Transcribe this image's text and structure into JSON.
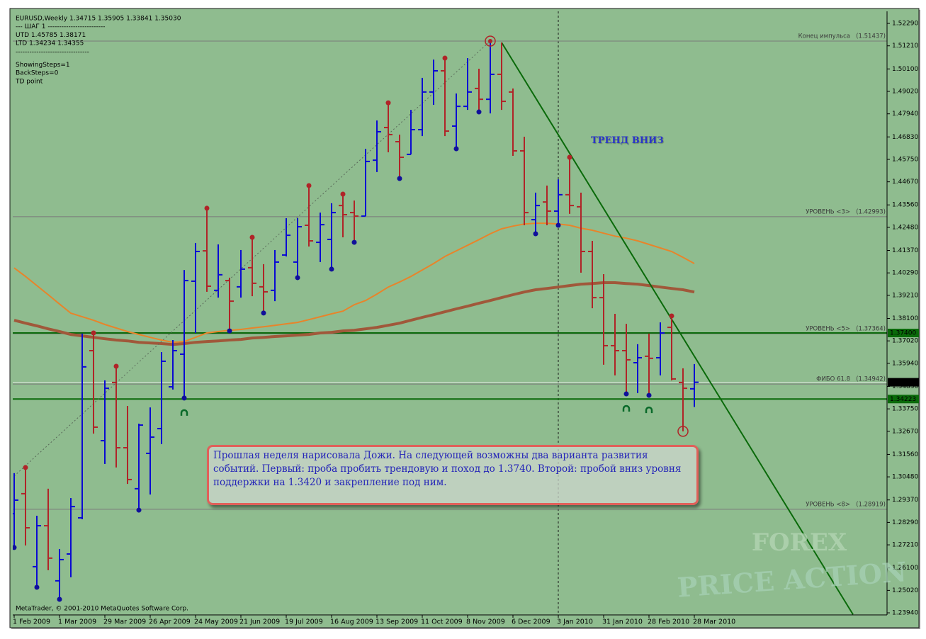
{
  "chart_data": {
    "type": "ohlc",
    "info": [
      "EURUSD,Weekly  1.34715 1.35905 1.33841 1.35030",
      "---    ШАГ 1    -------------------------",
      "UTD  1.45785   1.38171",
      "LTD  1.34234   1.34355",
      "--------------------------------",
      "ShowingSteps=1",
      "BackSteps=0",
      "TD point"
    ],
    "copyright": "MetaTrader, © 2001-2010 MetaQuotes Software Corp.",
    "annotation": "ТРЕНД ВНИЗ",
    "note": "Прошлая неделя нарисовала Дожи. На следующей возможны два варианта развития событий. Первый: проба пробить трендовую и поход до 1.3740. Второй: пробой вниз уровня поддержки на 1.3420 и закрепление под ним.",
    "watermark": [
      "FOREX",
      "PRICE ACTION"
    ],
    "background": "#8fbc8f",
    "up_color": "#0a0ad2",
    "down_color": "#b02428",
    "categories": [
      "1 Feb 2009",
      null,
      null,
      null,
      "1 Mar 2009",
      null,
      null,
      null,
      "29 Mar 2009",
      null,
      null,
      null,
      "26 Apr 2009",
      null,
      null,
      null,
      "24 May 2009",
      null,
      null,
      null,
      "21 Jun 2009",
      null,
      null,
      null,
      "19 Jul 2009",
      null,
      null,
      null,
      "16 Aug 2009",
      null,
      null,
      null,
      "13 Sep 2009",
      null,
      null,
      null,
      "11 Oct 2009",
      null,
      null,
      null,
      "8 Nov 2009",
      null,
      null,
      null,
      "6 Dec 2009",
      null,
      null,
      null,
      "3 Jan 2010",
      null,
      null,
      null,
      "31 Jan 2010",
      null,
      null,
      null,
      "28 Feb 2010",
      null,
      null,
      null,
      "28 Mar 2010"
    ],
    "open": [
      1.2871,
      1.2967,
      1.2616,
      1.2813,
      1.2548,
      1.2677,
      1.2851,
      1.3655,
      1.3222,
      1.3502,
      1.3188,
      1.2991,
      1.3161,
      1.328,
      1.3481,
      1.3638,
      1.3989,
      1.4135,
      1.3945,
      1.3992,
      1.3962,
      1.4054,
      1.3962,
      1.3945,
      1.4115,
      1.4081,
      1.4258,
      1.4176,
      1.419,
      1.4353,
      1.4319,
      1.4302,
      1.4571,
      1.4728,
      1.466,
      1.4599,
      1.4718,
      1.4899,
      1.5001,
      1.4735,
      1.483,
      1.4916,
      1.4864,
      1.4984,
      1.4899,
      1.4616,
      1.4285,
      1.437,
      1.4326,
      1.4405,
      1.4347,
      1.4132,
      1.391,
      1.3679,
      1.3655,
      1.3597,
      1.3628,
      1.3621,
      1.3767,
      1.3502,
      1.34715
    ],
    "high": [
      1.3066,
      1.3093,
      1.2861,
      1.2991,
      1.2701,
      1.2946,
      1.3737,
      1.374,
      1.3512,
      1.358,
      1.3389,
      1.3304,
      1.3382,
      1.3648,
      1.3706,
      1.4043,
      1.4173,
      1.434,
      1.4166,
      1.4006,
      1.4139,
      1.42,
      1.4071,
      1.4139,
      1.4292,
      1.4292,
      1.4449,
      1.4319,
      1.4364,
      1.4408,
      1.4377,
      1.4626,
      1.4762,
      1.4847,
      1.4694,
      1.4813,
      1.4967,
      1.5055,
      1.5062,
      1.4892,
      1.5062,
      1.5011,
      1.5144,
      1.5137,
      1.4916,
      1.4684,
      1.4415,
      1.4449,
      1.4479,
      1.4585,
      1.4415,
      1.4183,
      1.4023,
      1.3832,
      1.3784,
      1.3686,
      1.3737,
      1.3791,
      1.3822,
      1.357,
      1.35905
    ],
    "low": [
      1.2708,
      1.2718,
      1.2517,
      1.2599,
      1.2459,
      1.2565,
      1.2844,
      1.3256,
      1.311,
      1.3093,
      1.3014,
      1.2888,
      1.2963,
      1.3205,
      1.3468,
      1.3427,
      1.374,
      1.3938,
      1.391,
      1.375,
      1.391,
      1.3917,
      1.3836,
      1.3893,
      1.4108,
      1.4006,
      1.4156,
      1.4081,
      1.4047,
      1.42,
      1.4176,
      1.4302,
      1.4514,
      1.4609,
      1.4483,
      1.4599,
      1.4687,
      1.4837,
      1.4687,
      1.4626,
      1.4813,
      1.4803,
      1.4796,
      1.4813,
      1.4592,
      1.4258,
      1.4217,
      1.4258,
      1.4258,
      1.4313,
      1.403,
      1.3859,
      1.3587,
      1.3536,
      1.3447,
      1.3451,
      1.344,
      1.3536,
      1.3512,
      1.3267,
      1.33841
    ],
    "close": [
      1.2936,
      1.2803,
      1.2813,
      1.2657,
      1.265,
      1.2905,
      1.3577,
      1.3287,
      1.3474,
      1.3188,
      1.3035,
      1.3297,
      1.3239,
      1.3604,
      1.3655,
      1.3992,
      1.4132,
      1.3965,
      1.402,
      1.3893,
      1.4047,
      1.3979,
      1.3938,
      1.4081,
      1.421,
      1.4251,
      1.4183,
      1.4261,
      1.4319,
      1.4309,
      1.4302,
      1.4565,
      1.4708,
      1.4694,
      1.4585,
      1.4718,
      1.4899,
      1.5001,
      1.4711,
      1.483,
      1.4899,
      1.4864,
      1.4984,
      1.4854,
      1.4616,
      1.4319,
      1.4353,
      1.4326,
      1.4405,
      1.4353,
      1.4132,
      1.391,
      1.3679,
      1.3655,
      1.3611,
      1.3621,
      1.3618,
      1.374,
      1.3519,
      1.3474,
      1.3503
    ],
    "indicators": [
      {
        "color": "#e8842a",
        "width": 2,
        "values": [
          1.4053,
          1.4012,
          1.3968,
          1.3924,
          1.3879,
          1.3835,
          1.3818,
          1.3801,
          1.3781,
          1.3764,
          1.3747,
          1.3733,
          1.3719,
          1.3706,
          1.3695,
          1.3699,
          1.3719,
          1.374,
          1.3747,
          1.3753,
          1.3757,
          1.3764,
          1.377,
          1.3777,
          1.3784,
          1.3791,
          1.3804,
          1.3818,
          1.3832,
          1.3845,
          1.3876,
          1.3896,
          1.3927,
          1.3961,
          1.3985,
          1.4012,
          1.4043,
          1.4074,
          1.4108,
          1.4135,
          1.4162,
          1.4189,
          1.4217,
          1.4241,
          1.4254,
          1.4264,
          1.4268,
          1.4268,
          1.4264,
          1.4258,
          1.4244,
          1.4234,
          1.422,
          1.4206,
          1.4196,
          1.4183,
          1.4166,
          1.4149,
          1.4132,
          1.4104,
          1.4074
        ]
      },
      {
        "color": "#a0583a",
        "width": 4,
        "values": [
          1.3801,
          1.3787,
          1.3774,
          1.376,
          1.3747,
          1.3733,
          1.3726,
          1.3719,
          1.3712,
          1.3706,
          1.3702,
          1.3695,
          1.3692,
          1.3689,
          1.3685,
          1.3689,
          1.3695,
          1.3699,
          1.3702,
          1.3706,
          1.3709,
          1.3716,
          1.3719,
          1.3723,
          1.3726,
          1.373,
          1.3733,
          1.374,
          1.3743,
          1.375,
          1.3753,
          1.376,
          1.3767,
          1.3777,
          1.3787,
          1.3801,
          1.3815,
          1.3828,
          1.3842,
          1.3856,
          1.3869,
          1.3883,
          1.3896,
          1.391,
          1.3924,
          1.3937,
          1.3948,
          1.3954,
          1.3961,
          1.3968,
          1.3975,
          1.3978,
          1.3982,
          1.3982,
          1.3978,
          1.3975,
          1.3968,
          1.3961,
          1.3954,
          1.3948,
          1.3937
        ]
      }
    ],
    "fractal_highs": [
      1,
      7,
      9,
      17,
      21,
      26,
      29,
      33,
      38,
      49,
      58
    ],
    "fractal_lows": [
      0,
      2,
      4,
      11,
      15,
      19,
      22,
      25,
      28,
      30,
      34,
      39,
      41,
      46,
      48,
      54,
      56
    ],
    "highlight_highs": [
      42
    ],
    "highlight_lows": [
      59
    ],
    "td_points": [
      15,
      54,
      56
    ],
    "td_color": "#0a6a2a",
    "levels": [
      {
        "label": "Конец импульса",
        "value": 1.51437,
        "value_label": "(1.51437)",
        "color": "#7a7a7a"
      },
      {
        "label": "УРОВЕНЬ <3>",
        "value": 1.42993,
        "value_label": "(1.42993)",
        "color": "#7a7a7a"
      },
      {
        "label": "УРОВЕНЬ <5>",
        "value": 1.37364,
        "value_label": "(1.37364)",
        "color": "#7a7a7a"
      },
      {
        "label": "ФИБО 61.8",
        "value": 1.34942,
        "value_label": "(1.34942)",
        "color": "#7a7a7a"
      },
      {
        "label": "УРОВЕНЬ <8>",
        "value": 1.28919,
        "value_label": "(1.28919)",
        "color": "#7a7a7a"
      }
    ],
    "price_lines": [
      {
        "value": 1.374,
        "label": "1.37400",
        "color": "#0a6a0a",
        "line_color": "#0a6a0a"
      },
      {
        "value": 1.34223,
        "label": "1.34223",
        "color": "#0a6a0a",
        "line_color": "#0a6a0a"
      },
      {
        "value": 1.3503,
        "label": "1.35030",
        "color": "#000000",
        "line_color": "#dfe8df"
      }
    ],
    "trend_line": {
      "x": [
        43,
        74
      ],
      "y": [
        1.5137,
        1.2386
      ],
      "color": "#0a6a0a"
    },
    "impulse_line": {
      "x": [
        0,
        42
      ],
      "y": [
        1.3052,
        1.5144
      ],
      "color": "#5a6a5a"
    },
    "separator": {
      "x": 48
    },
    "xlim": [
      -0.125,
      77
    ],
    "ylim": [
      1.2384,
      1.5287
    ],
    "yticks": [
      {
        "value": 1.5229,
        "label": "1.52290"
      },
      {
        "value": 1.5121,
        "label": "1.51210"
      },
      {
        "value": 1.501,
        "label": "1.50100"
      },
      {
        "value": 1.4902,
        "label": "1.49020"
      },
      {
        "value": 1.4794,
        "label": "1.47940"
      },
      {
        "value": 1.4683,
        "label": "1.46830"
      },
      {
        "value": 1.4575,
        "label": "1.45750"
      },
      {
        "value": 1.4467,
        "label": "1.44670"
      },
      {
        "value": 1.4356,
        "label": "1.43560"
      },
      {
        "value": 1.4248,
        "label": "1.42480"
      },
      {
        "value": 1.4137,
        "label": "1.41370"
      },
      {
        "value": 1.4029,
        "label": "1.40290"
      },
      {
        "value": 1.3921,
        "label": "1.39210"
      },
      {
        "value": 1.381,
        "label": "1.38100"
      },
      {
        "value": 1.3702,
        "label": "1.37020"
      },
      {
        "value": 1.3594,
        "label": "1.35940"
      },
      {
        "value": 1.3483,
        "label": "1.34830"
      },
      {
        "value": 1.3375,
        "label": "1.33750"
      },
      {
        "value": 1.3267,
        "label": "1.32670"
      },
      {
        "value": 1.3156,
        "label": "1.31560"
      },
      {
        "value": 1.3048,
        "label": "1.30480"
      },
      {
        "value": 1.2937,
        "label": "1.29370"
      },
      {
        "value": 1.2829,
        "label": "1.28290"
      },
      {
        "value": 1.2721,
        "label": "1.27210"
      },
      {
        "value": 1.261,
        "label": "1.26100"
      },
      {
        "value": 1.2502,
        "label": "1.25020"
      },
      {
        "value": 1.2394,
        "label": "1.23940"
      }
    ]
  }
}
